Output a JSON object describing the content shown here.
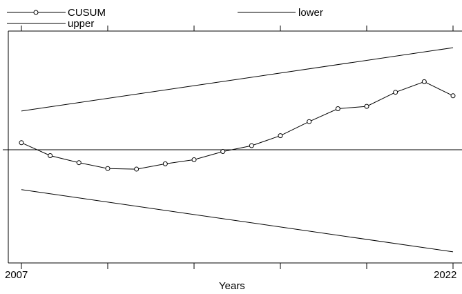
{
  "chart_data": {
    "type": "line",
    "title": "",
    "xlabel": "Years",
    "ylabel": "",
    "x_tick_labels": [
      "2007",
      "2022"
    ],
    "xlim": [
      2007,
      2022
    ],
    "ylim": [
      -8.9,
      8.9
    ],
    "grid": false,
    "legend_position": "top-left",
    "series": [
      {
        "name": "CUSUM",
        "marker": "circle",
        "x": [
          2007,
          2008,
          2009,
          2010,
          2011,
          2012,
          2013,
          2014,
          2015,
          2016,
          2017,
          2018,
          2019,
          2020,
          2021,
          2022
        ],
        "values": [
          0.6,
          -0.5,
          -1.1,
          -1.6,
          -1.65,
          -1.2,
          -0.85,
          -0.15,
          0.35,
          1.2,
          2.4,
          3.5,
          3.7,
          4.9,
          5.8,
          4.6
        ]
      },
      {
        "name": "lower",
        "x": [
          2007,
          2022
        ],
        "values": [
          -3.4,
          -8.7
        ]
      },
      {
        "name": "upper",
        "x": [
          2007,
          2022
        ],
        "values": [
          3.3,
          8.7
        ]
      }
    ]
  }
}
